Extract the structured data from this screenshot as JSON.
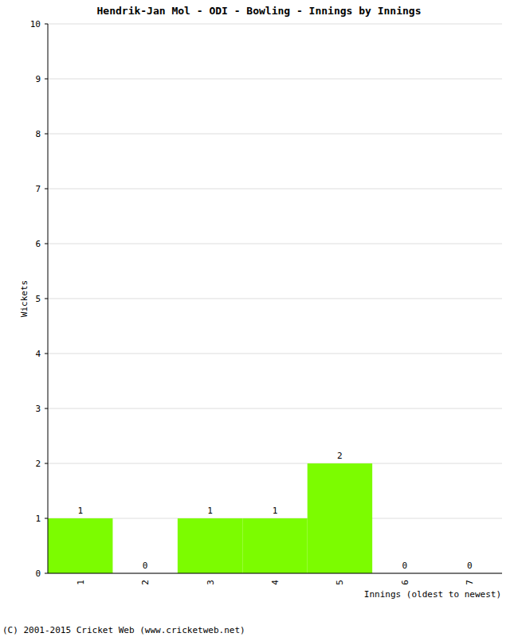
{
  "chart_data": {
    "type": "bar",
    "title": "Hendrik-Jan Mol - ODI - Bowling - Innings by Innings",
    "x_label": "Innings (oldest to newest)",
    "y_label": "Wickets",
    "footer": "(C) 2001-2015 Cricket Web (www.cricketweb.net)",
    "categories": [
      "1",
      "2",
      "3",
      "4",
      "5",
      "6",
      "7"
    ],
    "values": [
      1,
      0,
      1,
      1,
      2,
      0,
      0
    ],
    "color": "#7cfc00",
    "ylim": [
      0,
      10
    ],
    "yticks": [
      0,
      1,
      2,
      3,
      4,
      5,
      6,
      7,
      8,
      9,
      10
    ],
    "grid": true,
    "data_labels": true
  }
}
